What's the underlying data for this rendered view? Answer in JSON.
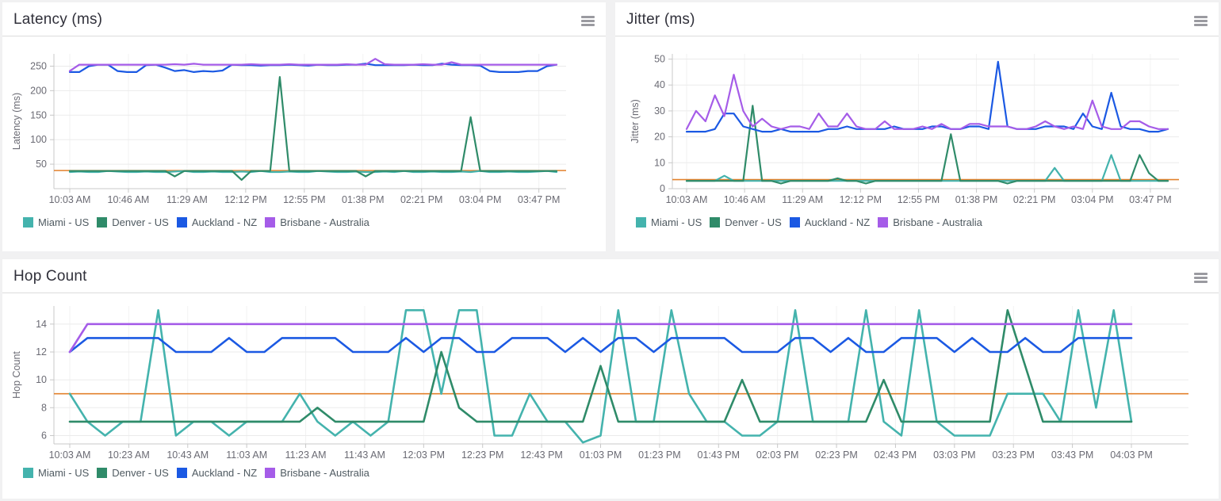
{
  "accent_colors": {
    "miami": "#44b3ad",
    "denver": "#2f8b69",
    "auckland": "#1b59e3",
    "brisbane": "#a55ce8",
    "threshold": "#e2812c"
  },
  "menu_icon_name": "hamburger-menu-icon",
  "chart_data": [
    {
      "type": "line",
      "title": "Latency (ms)",
      "ylabel": "Latency (ms)",
      "ylim": [
        0,
        275
      ],
      "yticks": [
        50,
        100,
        150,
        200,
        250
      ],
      "x_ticks": [
        "10:03 AM",
        "10:46 AM",
        "11:29 AM",
        "12:12 PM",
        "12:55 PM",
        "01:38 PM",
        "02:21 PM",
        "03:04 PM",
        "03:47 PM"
      ],
      "last_tick_frac": 0.9636,
      "grid": true,
      "legend_position": "bottom-left",
      "threshold": {
        "value": 37,
        "color": "#e2812c"
      },
      "series": [
        {
          "name": "Miami - US",
          "color": "#44b3ad",
          "values": [
            34,
            35,
            34,
            34,
            36,
            35,
            34,
            34,
            35,
            34,
            34,
            35,
            36,
            34,
            34,
            35,
            34,
            34,
            35,
            34,
            36,
            34,
            34,
            35,
            34,
            34,
            36,
            35,
            34,
            34,
            35,
            34,
            34,
            35,
            34,
            36,
            34,
            34,
            35,
            34,
            34,
            35,
            34,
            36,
            34,
            34,
            35,
            34,
            34,
            35,
            36,
            34
          ]
        },
        {
          "name": "Denver - US",
          "color": "#2f8b69",
          "values": [
            36,
            36,
            36,
            36,
            36,
            36,
            36,
            36,
            36,
            36,
            36,
            25,
            36,
            36,
            36,
            36,
            36,
            36,
            18,
            36,
            36,
            36,
            228,
            36,
            36,
            36,
            36,
            36,
            36,
            36,
            36,
            25,
            36,
            36,
            36,
            36,
            36,
            36,
            36,
            36,
            36,
            36,
            146,
            36,
            36,
            36,
            36,
            36,
            36,
            36,
            36,
            36
          ]
        },
        {
          "name": "Auckland - NZ",
          "color": "#1b59e3",
          "values": [
            238,
            238,
            250,
            253,
            253,
            240,
            238,
            238,
            252,
            253,
            247,
            240,
            242,
            238,
            240,
            239,
            241,
            253,
            252,
            252,
            251,
            252,
            252,
            253,
            252,
            251,
            253,
            252,
            252,
            253,
            253,
            255,
            252,
            252,
            252,
            252,
            253,
            252,
            252,
            255,
            253,
            252,
            252,
            251,
            240,
            238,
            238,
            238,
            240,
            240,
            250,
            253
          ]
        },
        {
          "name": "Brisbane - Australia",
          "color": "#a55ce8",
          "values": [
            240,
            253,
            253,
            253,
            253,
            253,
            253,
            253,
            253,
            253,
            253,
            254,
            253,
            255,
            253,
            253,
            253,
            253,
            253,
            254,
            253,
            253,
            253,
            254,
            253,
            253,
            253,
            253,
            253,
            254,
            253,
            253,
            265,
            254,
            253,
            253,
            253,
            254,
            253,
            253,
            258,
            253,
            253,
            253,
            253,
            253,
            253,
            253,
            253,
            253,
            253,
            253
          ]
        }
      ]
    },
    {
      "type": "line",
      "title": "Jitter (ms)",
      "ylabel": "Jitter (ms)",
      "ylim": [
        0,
        52
      ],
      "yticks": [
        0,
        10,
        20,
        30,
        40,
        50
      ],
      "x_ticks": [
        "10:03 AM",
        "10:46 AM",
        "11:29 AM",
        "12:12 PM",
        "12:55 PM",
        "01:38 PM",
        "02:21 PM",
        "03:04 PM",
        "03:47 PM"
      ],
      "last_tick_frac": 0.9636,
      "grid": true,
      "legend_position": "bottom-left",
      "threshold": {
        "value": 3.5,
        "color": "#e2812c"
      },
      "series": [
        {
          "name": "Miami - US",
          "color": "#44b3ad",
          "values": [
            3,
            3,
            3,
            3,
            5,
            3,
            3,
            3,
            3,
            3,
            3,
            3,
            3,
            3,
            3,
            3,
            3,
            3,
            3,
            3,
            3,
            3,
            3,
            3,
            3,
            3,
            3,
            3,
            3,
            3,
            3,
            3,
            3,
            3,
            3,
            3,
            3,
            3,
            3,
            8,
            3,
            3,
            3,
            3,
            3,
            13,
            3,
            3,
            3,
            3,
            3,
            3
          ]
        },
        {
          "name": "Denver - US",
          "color": "#2f8b69",
          "values": [
            3,
            3,
            3,
            3,
            3,
            3,
            3,
            32,
            3,
            3,
            2,
            3,
            3,
            3,
            3,
            3,
            4,
            3,
            3,
            2,
            3,
            3,
            3,
            3,
            3,
            3,
            3,
            3,
            21,
            3,
            3,
            3,
            3,
            3,
            2,
            3,
            3,
            3,
            3,
            3,
            3,
            3,
            3,
            3,
            3,
            3,
            3,
            3,
            13,
            6,
            3,
            3
          ]
        },
        {
          "name": "Auckland - NZ",
          "color": "#1b59e3",
          "values": [
            22,
            22,
            22,
            23,
            29,
            29,
            24,
            23,
            22,
            22,
            23,
            22,
            22,
            22,
            22,
            23,
            23,
            24,
            23,
            23,
            23,
            23,
            24,
            23,
            23,
            23,
            24,
            24,
            23,
            23,
            24,
            24,
            23,
            49,
            24,
            23,
            23,
            23,
            24,
            24,
            24,
            23,
            29,
            24,
            23,
            37,
            24,
            23,
            23,
            22,
            22,
            23
          ]
        },
        {
          "name": "Brisbane - Australia",
          "color": "#a55ce8",
          "values": [
            23,
            30,
            26,
            36,
            28,
            44,
            30,
            24,
            27,
            24,
            23,
            24,
            24,
            23,
            29,
            24,
            24,
            29,
            24,
            23,
            23,
            26,
            23,
            23,
            23,
            24,
            23,
            25,
            23,
            23,
            25,
            25,
            24,
            24,
            24,
            23,
            23,
            24,
            26,
            24,
            23,
            24,
            23,
            34,
            24,
            23,
            23,
            26,
            26,
            24,
            23,
            23
          ]
        }
      ]
    },
    {
      "type": "line",
      "title": "Hop Count",
      "ylabel": "Hop Count",
      "ylim": [
        5.4,
        15.3
      ],
      "yticks": [
        6,
        8,
        10,
        12,
        14
      ],
      "x_ticks": [
        "10:03 AM",
        "10:23 AM",
        "10:43 AM",
        "11:03 AM",
        "11:23 AM",
        "11:43 AM",
        "12:03 PM",
        "12:23 PM",
        "12:43 PM",
        "01:03 PM",
        "01:23 PM",
        "01:43 PM",
        "02:03 PM",
        "02:23 PM",
        "02:43 PM",
        "03:03 PM",
        "03:23 PM",
        "03:43 PM",
        "04:03 PM"
      ],
      "last_tick_frac": 1.0,
      "grid": true,
      "legend_position": "bottom-left",
      "threshold": {
        "value": 9,
        "color": "#e2812c"
      },
      "series": [
        {
          "name": "Miami - US",
          "color": "#44b3ad",
          "values": [
            9,
            7,
            6,
            7,
            7,
            15,
            6,
            7,
            7,
            6,
            7,
            7,
            7,
            9,
            7,
            6,
            7,
            6,
            7,
            15,
            15,
            9,
            15,
            15,
            6,
            6,
            9,
            7,
            7,
            5.5,
            6,
            15,
            7,
            7,
            15,
            9,
            7,
            7,
            6,
            6,
            7,
            15,
            7,
            7,
            7,
            15,
            7,
            6,
            15,
            7,
            6,
            6,
            6,
            9,
            9,
            9,
            7,
            15,
            8,
            15,
            7
          ]
        },
        {
          "name": "Denver - US",
          "color": "#2f8b69",
          "values": [
            7,
            7,
            7,
            7,
            7,
            7,
            7,
            7,
            7,
            7,
            7,
            7,
            7,
            7,
            8,
            7,
            7,
            7,
            7,
            7,
            7,
            12,
            8,
            7,
            7,
            7,
            7,
            7,
            7,
            7,
            11,
            7,
            7,
            7,
            7,
            7,
            7,
            7,
            10,
            7,
            7,
            7,
            7,
            7,
            7,
            7,
            10,
            7,
            7,
            7,
            7,
            7,
            7,
            15,
            11,
            7,
            7,
            7,
            7,
            7,
            7
          ]
        },
        {
          "name": "Auckland - NZ",
          "color": "#1b59e3",
          "values": [
            12,
            13,
            13,
            13,
            13,
            13,
            12,
            12,
            12,
            13,
            12,
            12,
            13,
            13,
            13,
            13,
            12,
            12,
            12,
            13,
            12,
            13,
            13,
            12,
            12,
            13,
            13,
            13,
            12,
            13,
            12,
            13,
            13,
            12,
            13,
            13,
            13,
            13,
            12,
            12,
            12,
            13,
            13,
            12,
            13,
            12,
            12,
            13,
            13,
            13,
            12,
            13,
            12,
            12,
            13,
            12,
            12,
            13,
            13,
            13,
            13
          ]
        },
        {
          "name": "Brisbane - Australia",
          "color": "#a55ce8",
          "values": [
            12,
            14,
            14,
            14,
            14,
            14,
            14,
            14,
            14,
            14,
            14,
            14,
            14,
            14,
            14,
            14,
            14,
            14,
            14,
            14,
            14,
            14,
            14,
            14,
            14,
            14,
            14,
            14,
            14,
            14,
            14,
            14,
            14,
            14,
            14,
            14,
            14,
            14,
            14,
            14,
            14,
            14,
            14,
            14,
            14,
            14,
            14,
            14,
            14,
            14,
            14,
            14,
            14,
            14,
            14,
            14,
            14,
            14,
            14,
            14,
            14
          ]
        }
      ]
    }
  ]
}
